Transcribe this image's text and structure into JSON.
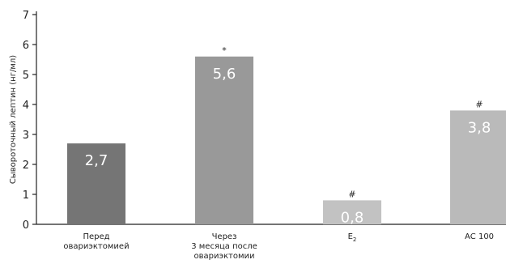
{
  "chart_data": {
    "type": "bar",
    "ylabel": "Сывороточный лептин (нг/мл)",
    "xlabel": "",
    "ylim": [
      0,
      7
    ],
    "yticks": [
      0,
      1,
      2,
      3,
      4,
      5,
      6,
      7
    ],
    "grid": false,
    "categories": [
      {
        "lines": [
          "Перед",
          "овариэктомией"
        ]
      },
      {
        "lines": [
          "Через",
          "3 месяца после",
          "овариэктомии"
        ]
      },
      {
        "base": "E",
        "sub": "2"
      },
      {
        "lines": [
          "АС 100"
        ]
      }
    ],
    "values": [
      2.7,
      5.6,
      0.8,
      3.8
    ],
    "value_labels": [
      "2,7",
      "5,6",
      "0,8",
      "3,8"
    ],
    "markers": [
      "",
      "*",
      "#",
      "#"
    ],
    "colors": [
      "#757575",
      "#999999",
      "#c2c2c2",
      "#bababa"
    ]
  }
}
